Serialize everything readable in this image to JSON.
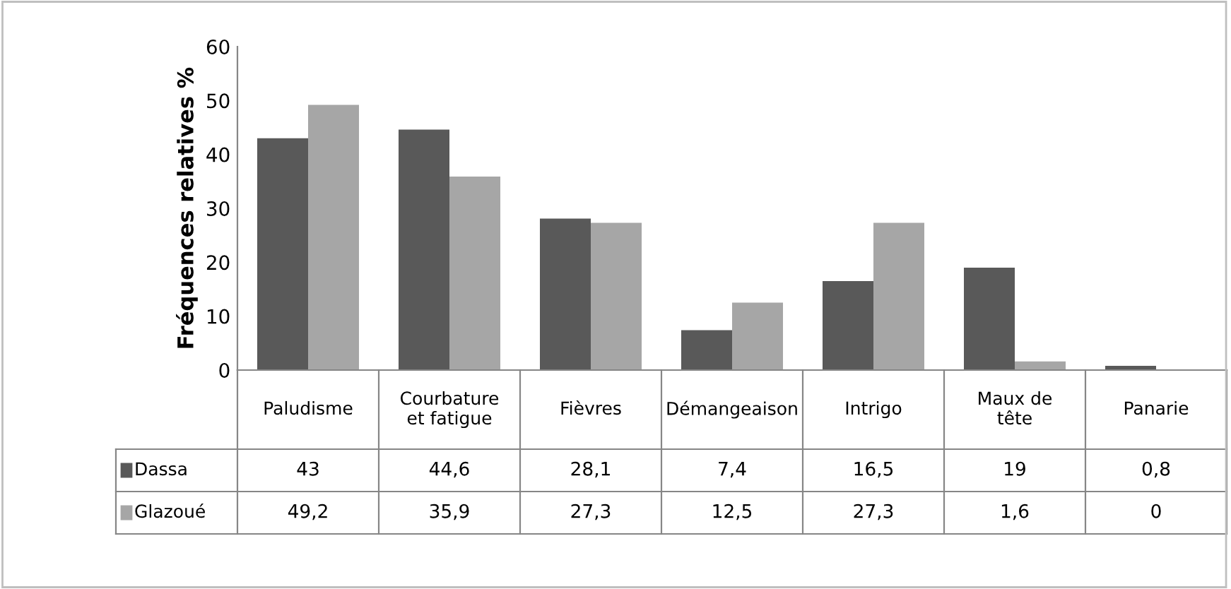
{
  "chart_data": {
    "type": "bar",
    "ylabel": "Fréquences relatives %",
    "categories": [
      "Paludisme",
      "Courbature et fatigue",
      "Fièvres",
      "Démangeaison",
      "Intrigo",
      "Maux de tête",
      "Panarie"
    ],
    "series": [
      {
        "name": "Dassa",
        "color": "#595959",
        "values": [
          43,
          44.6,
          28.1,
          7.4,
          16.5,
          19,
          0.8
        ],
        "value_labels": [
          "43",
          "44,6",
          "28,1",
          "7,4",
          "16,5",
          "19",
          "0,8"
        ]
      },
      {
        "name": "Glazoué",
        "color": "#a6a6a6",
        "values": [
          49.2,
          35.9,
          27.3,
          12.5,
          27.3,
          1.6,
          0
        ],
        "value_labels": [
          "49,2",
          "35,9",
          "27,3",
          "12,5",
          "27,3",
          "1,6",
          "0"
        ]
      }
    ],
    "ylim": [
      0,
      60
    ],
    "yticks": [
      0,
      10,
      20,
      30,
      40,
      50,
      60
    ],
    "grid": false,
    "legend": "bottom left"
  }
}
